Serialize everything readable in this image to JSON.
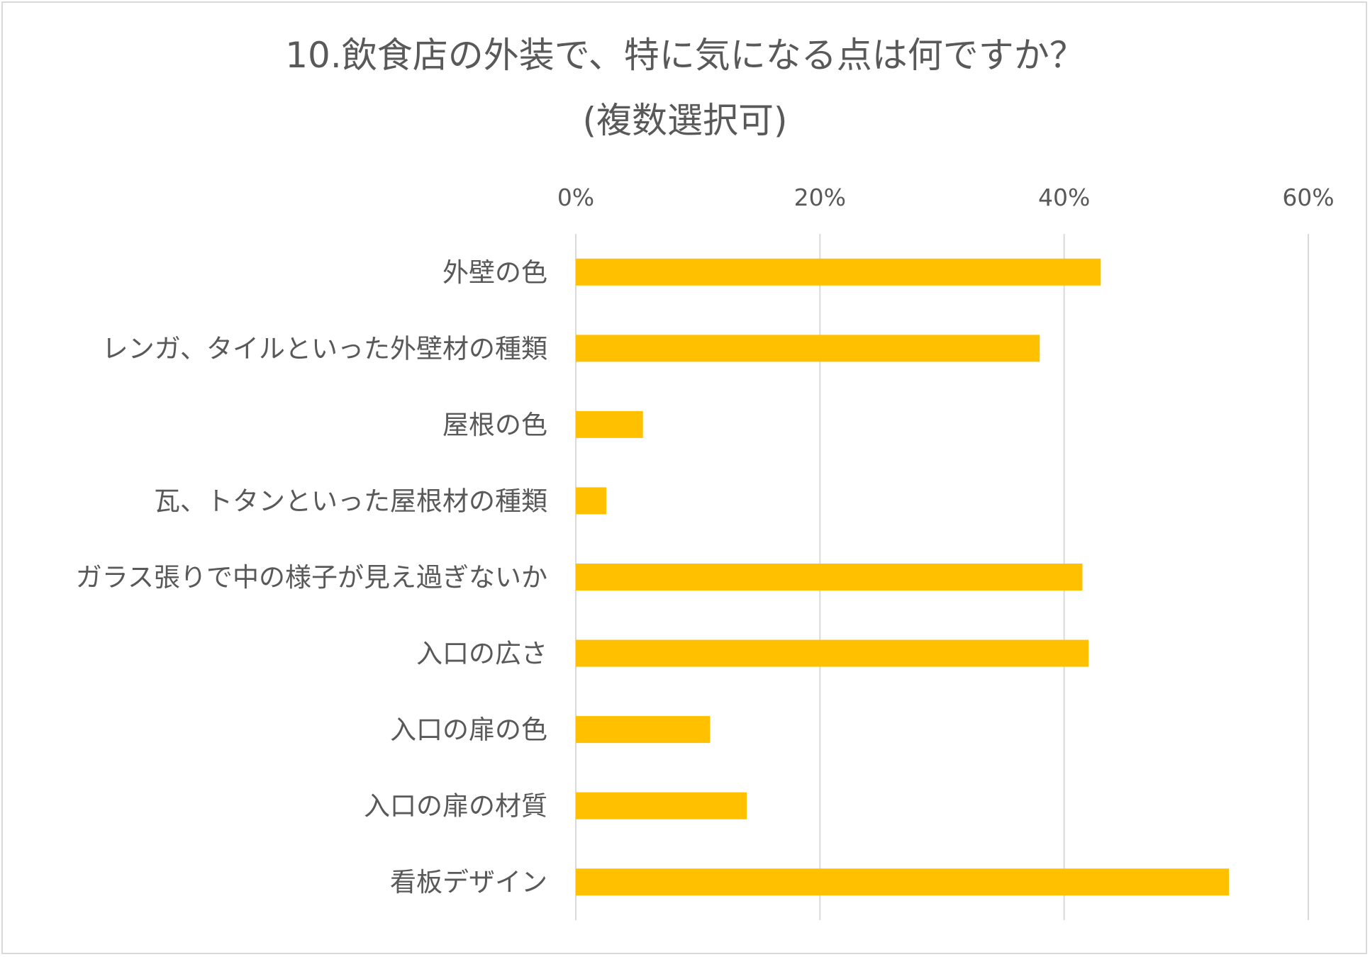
{
  "chart_data": {
    "type": "bar",
    "orientation": "horizontal",
    "title": "10.飲食店の外装で、特に気になる点は何ですか？",
    "subtitle": "(複数選択可)",
    "categories": [
      "外壁の色",
      "レンガ、タイルといった外壁材の種類",
      "屋根の色",
      "瓦、トタンといった屋根材の種類",
      "ガラス張りで中の様子が見え過ぎないか",
      "入口の広さ",
      "入口の扉の色",
      "入口の扉の材質",
      "看板デザイン"
    ],
    "values": [
      43,
      38,
      5.5,
      2.5,
      41.5,
      42,
      11,
      14,
      53.5
    ],
    "xlim": [
      0,
      60
    ],
    "ticks": [
      0,
      20,
      40,
      60
    ],
    "tick_labels": [
      "0%",
      "20%",
      "40%",
      "60%"
    ],
    "x_axis_position": "top",
    "grid": true,
    "legend": "none",
    "bar_color": "#FFC000",
    "gridline_color": "#d9d9d9"
  }
}
